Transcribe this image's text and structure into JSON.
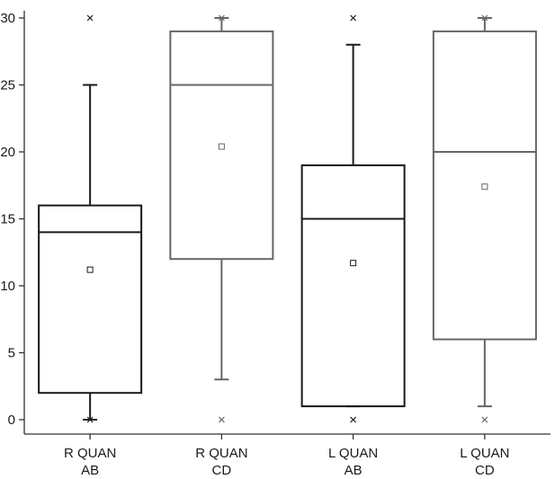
{
  "chart_data": {
    "type": "box",
    "title": "",
    "xlabel": "",
    "ylabel": "",
    "ylim": [
      0,
      30
    ],
    "y_ticks": [
      0,
      5,
      10,
      15,
      20,
      25,
      30
    ],
    "grid": false,
    "categories": [
      {
        "line1": "R QUAN",
        "line2": "AB"
      },
      {
        "line1": "R QUAN",
        "line2": "CD"
      },
      {
        "line1": "L QUAN",
        "line2": "AB"
      },
      {
        "line1": "L QUAN",
        "line2": "CD"
      }
    ],
    "boxes": [
      {
        "whisker_low": 0,
        "q1": 2,
        "median": 14,
        "q3": 16,
        "whisker_high": 25,
        "mean": 11.2,
        "outliers": [
          0,
          30
        ],
        "color": "#1a1a1a"
      },
      {
        "whisker_low": 3,
        "q1": 12,
        "median": 25,
        "q3": 29,
        "whisker_high": 30,
        "mean": 20.4,
        "outliers": [
          0,
          30
        ],
        "color": "#666666"
      },
      {
        "whisker_low": 1,
        "q1": 1,
        "median": 15,
        "q3": 19,
        "whisker_high": 28,
        "mean": 11.7,
        "outliers": [
          0,
          30
        ],
        "color": "#1a1a1a"
      },
      {
        "whisker_low": 1,
        "q1": 6,
        "median": 20,
        "q3": 29,
        "whisker_high": 30,
        "mean": 17.4,
        "outliers": [
          0,
          30
        ],
        "color": "#666666"
      }
    ]
  }
}
